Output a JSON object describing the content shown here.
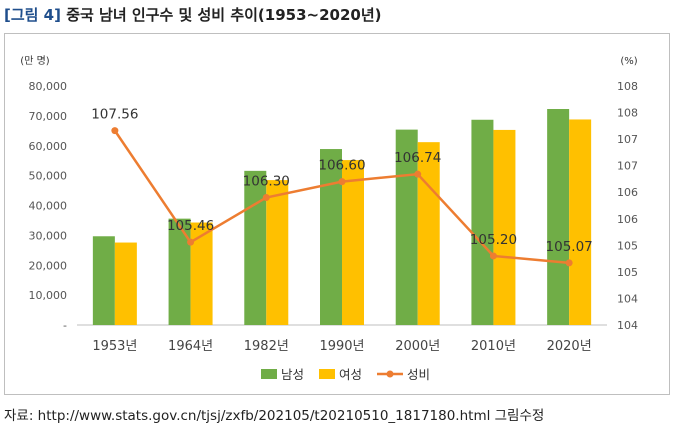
{
  "title": {
    "tag": "[그림 4]",
    "text": "중국 남녀 인구수 및 성비 추이(1953~2020년)"
  },
  "source": "자료: http://www.stats.gov.cn/tjsj/zxfb/202105/t20210510_1817180.html 그림수정",
  "chart_data": {
    "type": "bar",
    "title": "중국 남녀 인구수 및 성비 추이(1953~2020년)",
    "categories": [
      "1953년",
      "1964년",
      "1982년",
      "1990년",
      "2000년",
      "2010년",
      "2020년"
    ],
    "y_left": {
      "unit": "(만 명)",
      "ticks": [
        "-",
        "10,000",
        "20,000",
        "30,000",
        "40,000",
        "50,000",
        "60,000",
        "70,000",
        "80,000"
      ],
      "range": [
        0,
        80000
      ]
    },
    "y_right": {
      "unit": "(%)",
      "ticks": [
        "104",
        "104",
        "105",
        "105",
        "106",
        "106",
        "107",
        "107",
        "108",
        "108"
      ],
      "range": [
        103.9,
        108.4
      ]
    },
    "series": [
      {
        "name": "남성",
        "type": "bar",
        "color": "#70ad47",
        "values": [
          29700,
          35600,
          51600,
          58900,
          65400,
          68700,
          72300
        ]
      },
      {
        "name": "여성",
        "type": "bar",
        "color": "#ffc000",
        "values": [
          27600,
          34300,
          48500,
          55200,
          61200,
          65300,
          68800
        ]
      },
      {
        "name": "성비",
        "type": "line",
        "color": "#ed7d31",
        "values": [
          107.56,
          105.46,
          106.3,
          106.6,
          106.74,
          105.2,
          105.07
        ],
        "labels": [
          "107.56",
          "105.46",
          "106.30",
          "106.60",
          "106.74",
          "105.20",
          "105.07"
        ]
      }
    ],
    "legend_position": "bottom",
    "grid": false
  }
}
